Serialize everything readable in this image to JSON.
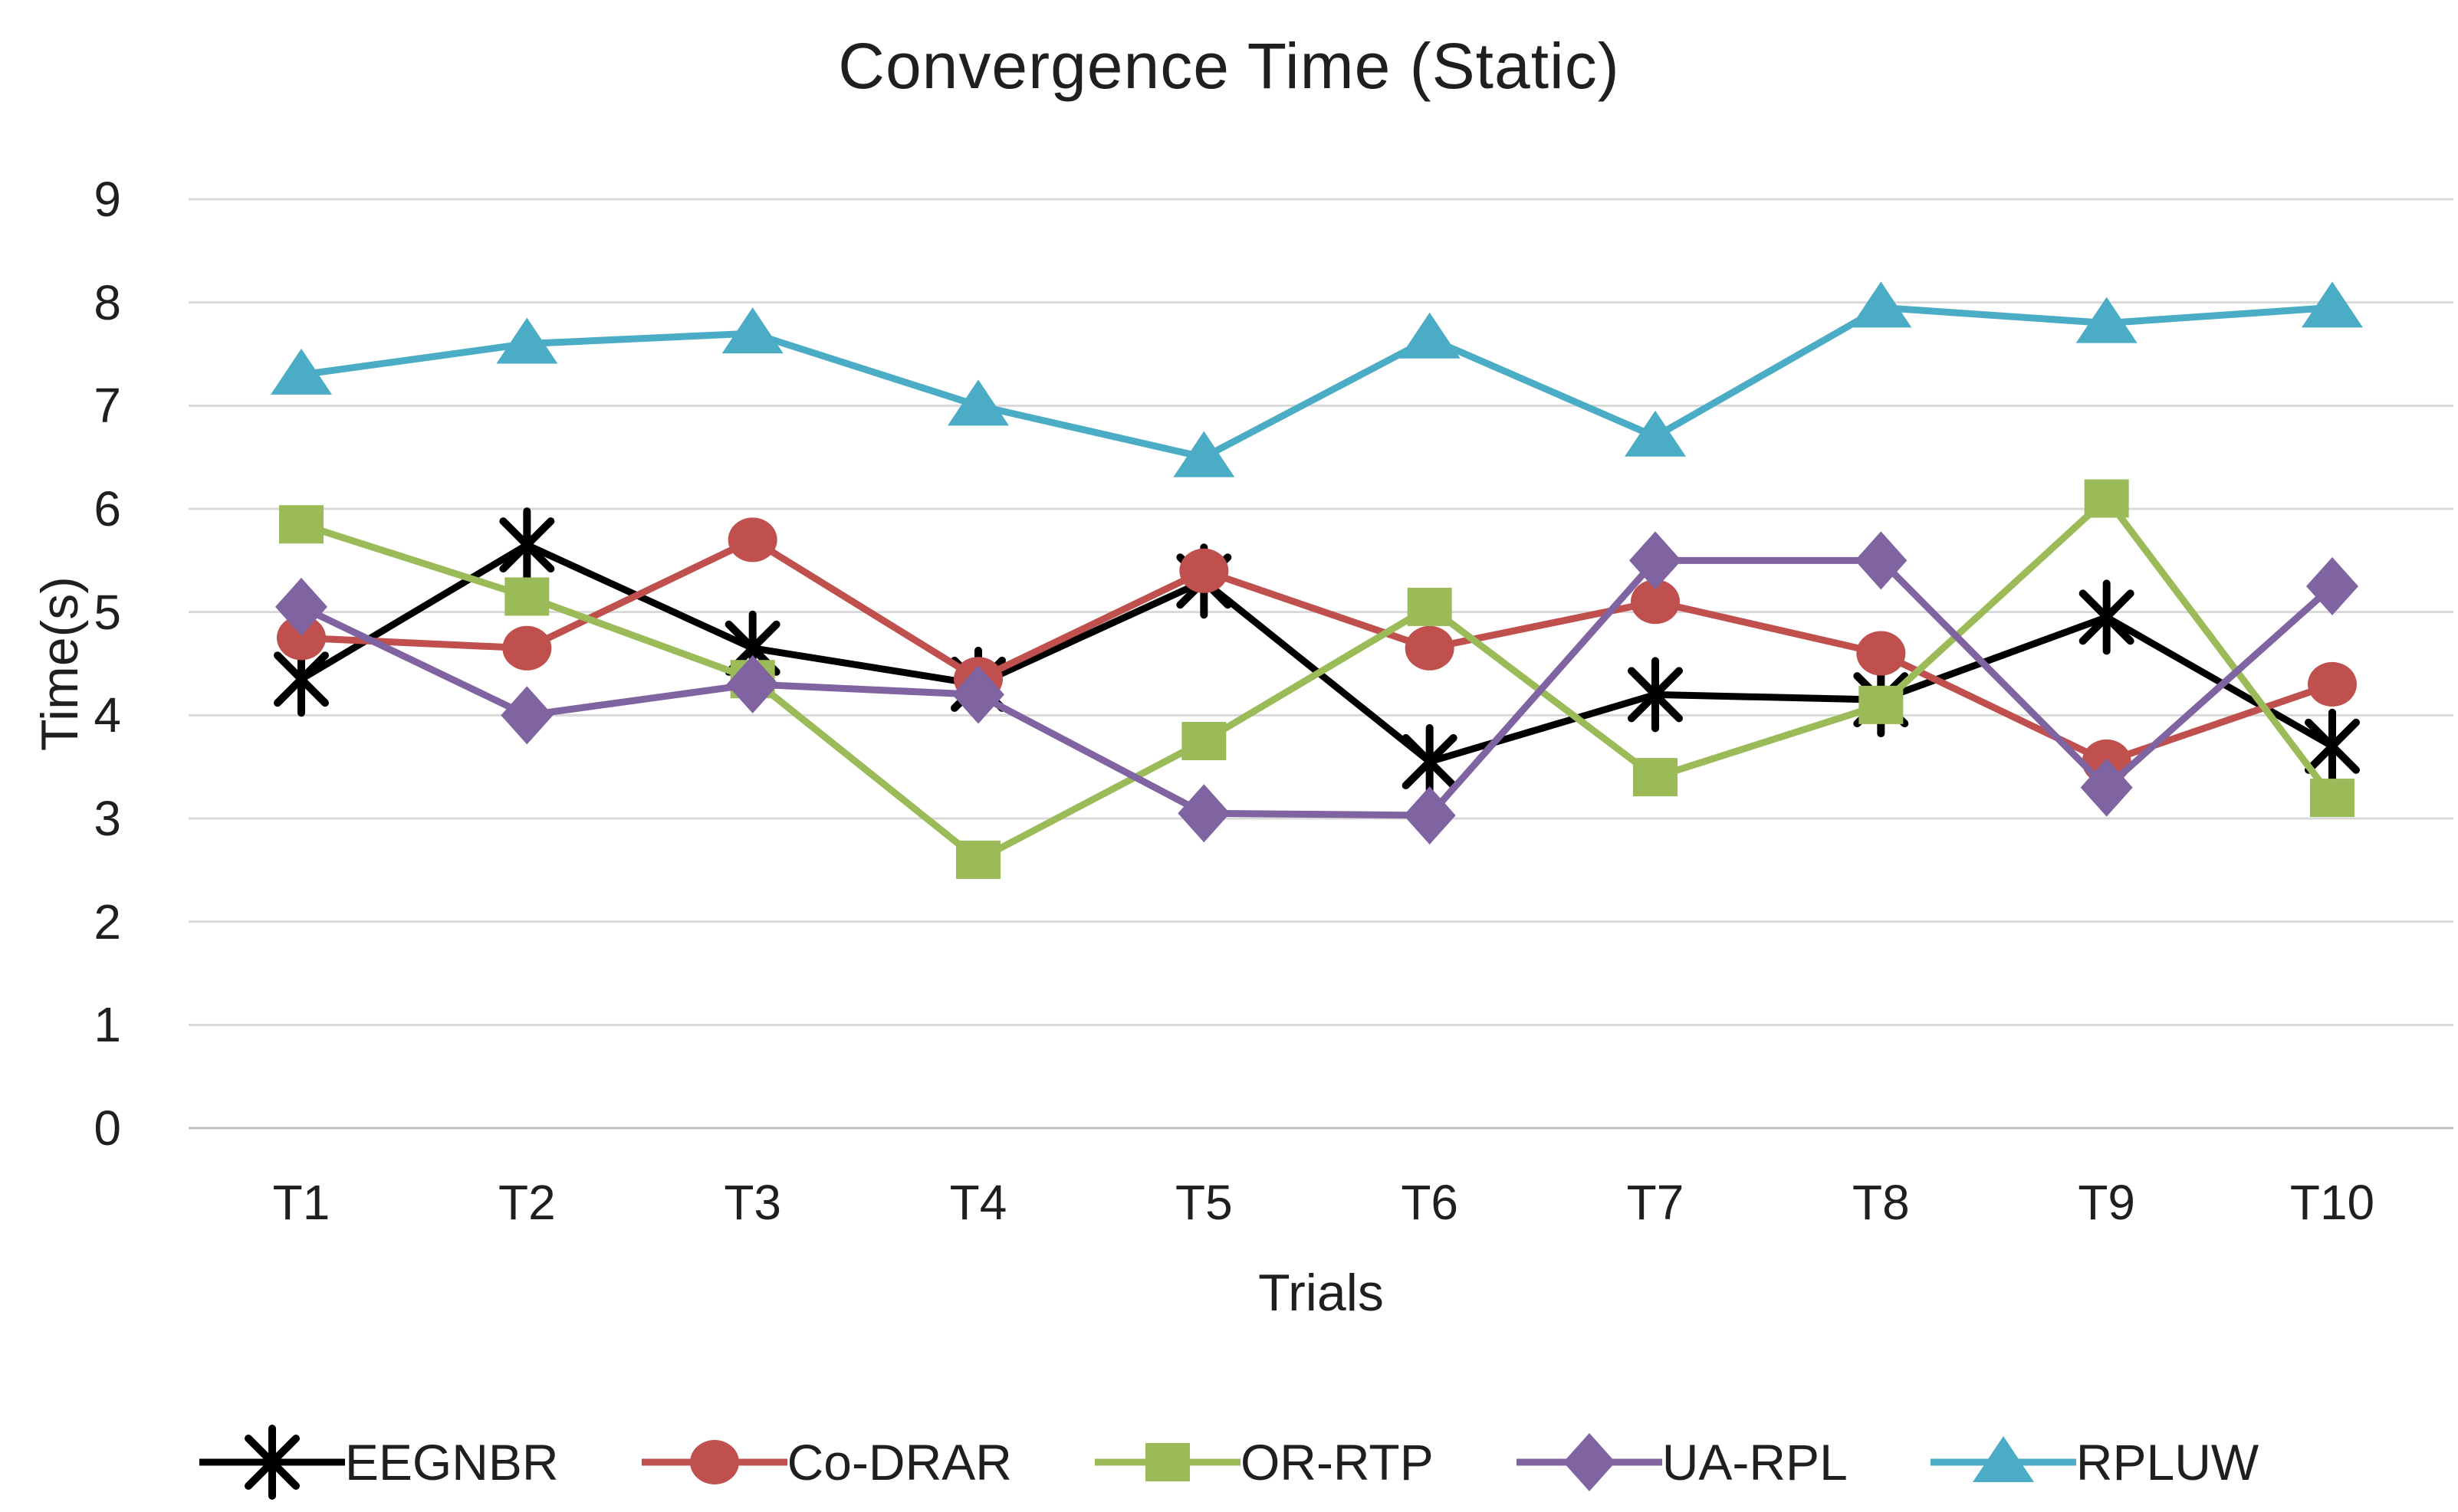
{
  "chart_data": {
    "type": "line",
    "title": "Convergence Time (Static)",
    "xlabel": "Trials",
    "ylabel": "Time(s)",
    "categories": [
      "T1",
      "T2",
      "T3",
      "T4",
      "T5",
      "T6",
      "T7",
      "T8",
      "T9",
      "T10"
    ],
    "y_ticks": [
      0,
      1,
      2,
      3,
      4,
      5,
      6,
      7,
      8,
      9
    ],
    "ylim": [
      0,
      9
    ],
    "grid": "horizontal",
    "legend_position": "bottom",
    "series": [
      {
        "name": "EEGNBR",
        "color": "#000000",
        "marker": "asterisk",
        "values": [
          4.35,
          5.65,
          4.65,
          4.3,
          5.3,
          3.55,
          4.2,
          4.15,
          4.95,
          3.7
        ]
      },
      {
        "name": "Co-DRAR",
        "color": "#C0504D",
        "marker": "circle",
        "values": [
          4.75,
          4.65,
          5.7,
          4.35,
          5.4,
          4.65,
          5.1,
          4.6,
          3.55,
          4.3
        ]
      },
      {
        "name": "OR-RTP",
        "color": "#9BBB59",
        "marker": "square",
        "values": [
          5.85,
          5.15,
          4.35,
          2.6,
          3.75,
          5.05,
          3.4,
          4.1,
          6.1,
          3.2
        ]
      },
      {
        "name": "UA-RPL",
        "color": "#8064A2",
        "marker": "diamond",
        "values": [
          5.05,
          4.0,
          4.3,
          4.2,
          3.05,
          3.03,
          5.5,
          5.5,
          3.3,
          5.25
        ]
      },
      {
        "name": "RPLUW",
        "color": "#4BACC6",
        "marker": "triangle",
        "values": [
          7.3,
          7.6,
          7.7,
          7.0,
          6.5,
          7.65,
          6.7,
          7.95,
          7.8,
          7.95
        ]
      }
    ],
    "gridline_color": "#D9D9D9",
    "axis_line_color": "#BFBFBF",
    "text_color": "#1f1f1f"
  }
}
